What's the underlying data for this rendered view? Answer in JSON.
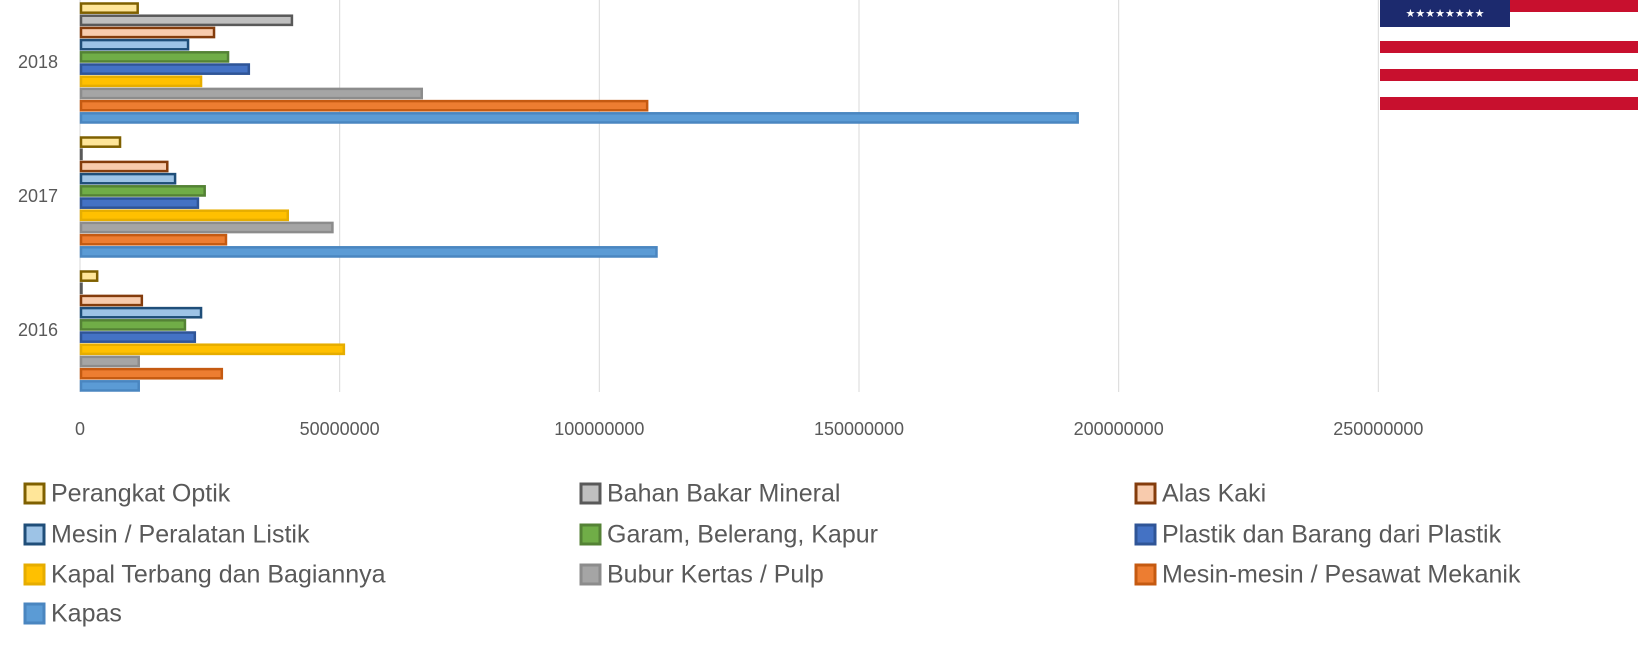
{
  "chart_data": {
    "type": "barh",
    "categories": [
      "2016",
      "2017",
      "2018"
    ],
    "series": [
      {
        "name": "Perangkat Optik",
        "color": "#ffe699",
        "edgecolor": "#7f6000",
        "values": [
          3500000,
          7900000,
          11300000
        ]
      },
      {
        "name": "Bahan Bakar Mineral",
        "color": "#bfbfbf",
        "edgecolor": "#595959",
        "values": [
          200000,
          300000,
          41000000
        ]
      },
      {
        "name": "Alas Kaki",
        "color": "#f8cbad",
        "edgecolor": "#843c0c",
        "values": [
          12100000,
          17000000,
          26000000
        ]
      },
      {
        "name": "Mesin / Peralatan Listik",
        "color": "#9dc3e6",
        "edgecolor": "#1f4e79",
        "values": [
          23500000,
          18500000,
          21000000
        ]
      },
      {
        "name": "Garam, Belerang, Kapur",
        "color": "#70ad47",
        "edgecolor": "#548235",
        "values": [
          20400000,
          24200000,
          28700000
        ]
      },
      {
        "name": "Plastik dan Barang dari Plastik",
        "color": "#4472c4",
        "edgecolor": "#2f5597",
        "values": [
          22300000,
          22900000,
          32700000
        ]
      },
      {
        "name": "Kapal Terbang dan Bagiannya",
        "color": "#ffc000",
        "edgecolor": "#e6ad00",
        "values": [
          51000000,
          40200000,
          23500000
        ]
      },
      {
        "name": "Bubur Kertas / Pulp",
        "color": "#a5a5a5",
        "edgecolor": "#8c8c8c",
        "values": [
          11500000,
          48800000,
          66000000
        ]
      },
      {
        "name": "Mesin-mesin / Pesawat Mekanik",
        "color": "#ed7d31",
        "edgecolor": "#c55a11",
        "values": [
          27500000,
          28300000,
          109400000
        ]
      },
      {
        "name": "Kapas",
        "color": "#5b9bd5",
        "edgecolor": "#4a86c0",
        "values": [
          11500000,
          111200000,
          192300000
        ]
      }
    ],
    "xlim": [
      0,
      300000000
    ],
    "xticks": [
      0,
      50000000,
      100000000,
      150000000,
      200000000,
      250000000
    ],
    "grid": true
  }
}
